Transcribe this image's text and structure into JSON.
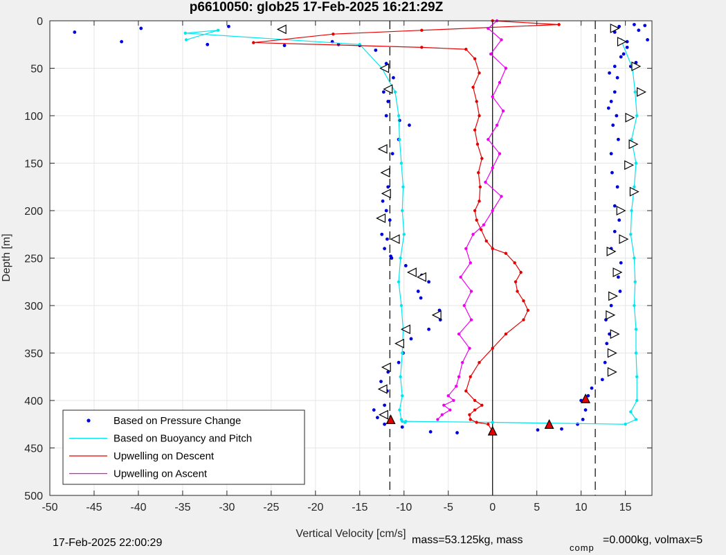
{
  "chart_data": {
    "type": "scatter",
    "title": "p6610050: glob25 17-Feb-2025 16:21:29Z",
    "xlabel": "Vertical Velocity [cm/s]",
    "ylabel": "Depth [m]",
    "xlim": [
      -50,
      18
    ],
    "ylim": [
      0,
      500
    ],
    "y_reversed": true,
    "grid": true,
    "legend_position": "bottom-left",
    "x_ticks": [
      -50,
      -45,
      -40,
      -35,
      -30,
      -25,
      -20,
      -15,
      -10,
      -5,
      0,
      5,
      10,
      15
    ],
    "y_ticks": [
      0,
      50,
      100,
      150,
      200,
      250,
      300,
      350,
      400,
      450,
      500
    ],
    "reference_lines": [
      {
        "x": -11.6,
        "style": "dashed",
        "color": "#000000"
      },
      {
        "x": 11.6,
        "style": "dashed",
        "color": "#000000"
      },
      {
        "x": 0,
        "style": "solid",
        "color": "#000000"
      }
    ],
    "series": [
      {
        "name": "Based on Pressure Change",
        "kind": "points",
        "color": "#0000dd",
        "x": [
          -47.2,
          -39.7,
          -41.9,
          -32.2,
          -29.8,
          -23.5,
          -17.4,
          -18.1,
          -15.0,
          -13.2,
          -12.0,
          -11.2,
          -12.3,
          -11.8,
          -12.0,
          -10.5,
          -9.4,
          -10.6,
          -11.3,
          -12.1,
          -11.8,
          -12.4,
          -12.0,
          -11.6,
          -12.5,
          -11.9,
          -12.2,
          -11.5,
          -11.4,
          -9.8,
          -8.0,
          -7.2,
          -8.4,
          -8.1,
          -6.0,
          -5.9,
          -7.2,
          -9.2,
          -10.1,
          -10.6,
          -11.8,
          -12.6,
          -11.9,
          -12.2,
          -13.4,
          -13.0,
          -12.2,
          -10.2,
          -7.0,
          -4.0,
          0.0,
          5.1,
          7.8,
          9.6,
          10.2,
          10.5,
          10.0,
          10.8,
          11.2,
          12.4,
          12.7,
          12.9,
          13.2,
          12.8,
          13.4,
          14.4,
          14.2,
          14.5,
          13.4,
          13.8,
          14.3,
          13.8,
          14.1,
          13.5,
          13.4,
          14.2,
          13.6,
          14.0,
          13.1,
          13.4,
          13.8,
          14.1,
          13.2,
          13.8,
          14.5,
          15.2,
          13.8,
          14.3,
          16.0,
          17.2,
          16.5,
          17.5,
          15.2,
          14.8,
          16.2,
          15.6
        ],
        "y": [
          12,
          8,
          22,
          25,
          6,
          26,
          25,
          22,
          26,
          31,
          45,
          60,
          75,
          85,
          100,
          105,
          110,
          125,
          140,
          160,
          175,
          190,
          200,
          210,
          225,
          230,
          240,
          248,
          250,
          258,
          268,
          275,
          285,
          292,
          305,
          315,
          325,
          335,
          350,
          360,
          370,
          380,
          390,
          405,
          410,
          418,
          425,
          428,
          433,
          434,
          433,
          431,
          430,
          425,
          420,
          410,
          400,
          395,
          387,
          378,
          360,
          340,
          330,
          315,
          300,
          285,
          270,
          255,
          240,
          222,
          210,
          195,
          175,
          160,
          140,
          125,
          110,
          100,
          92,
          85,
          75,
          60,
          55,
          48,
          38,
          22,
          12,
          6,
          4,
          5,
          10,
          20,
          28,
          35,
          44,
          48
        ]
      },
      {
        "name": "Based on Buoyancy and Pitch",
        "kind": "line-markers",
        "color": "#00e5ee",
        "x": [
          -34.6,
          -31.0,
          -34.7,
          -15.0,
          -12.5,
          -11.0,
          -10.6,
          -10.5,
          -10.3,
          -10.1,
          -10.2,
          -10.0,
          -10.4,
          -10.6,
          -10.3,
          -10.1,
          -10.2,
          -10.4,
          -10.2,
          -10.5,
          -10.3,
          -10.2,
          -9.9,
          -9.8,
          0.0,
          15.0,
          16.2,
          15.6,
          16.3,
          16.3,
          16.2,
          16.2,
          16.0,
          16.1,
          16.0,
          15.6,
          15.7,
          16.0,
          16.2,
          15.7,
          16.3,
          16.1,
          15.8,
          14.5
        ],
        "y": [
          20,
          10,
          13,
          25,
          50,
          75,
          100,
          125,
          150,
          175,
          200,
          225,
          250,
          275,
          300,
          325,
          350,
          375,
          395,
          410,
          420,
          422,
          423,
          422,
          423,
          425,
          420,
          412,
          400,
          375,
          350,
          325,
          300,
          275,
          250,
          225,
          200,
          175,
          150,
          125,
          100,
          75,
          50,
          20
        ]
      },
      {
        "name": "Upwelling on Descent",
        "kind": "line-markers",
        "color": "#e40000",
        "x": [
          0.0,
          7.5,
          -8.0,
          -18.0,
          -27.0,
          -8.0,
          -3.0,
          -2.0,
          -1.5,
          -2.2,
          -1.8,
          -1.5,
          -2.0,
          -1.7,
          -1.2,
          -1.6,
          -1.4,
          -1.5,
          -2.0,
          -1.8,
          -1.3,
          -0.7,
          0.0,
          1.5,
          2.5,
          3.2,
          2.6,
          2.8,
          3.5,
          4.0,
          3.5,
          1.5,
          0.0,
          -1.5,
          -2.5,
          -3.0,
          -2.0,
          -1.2,
          -2.0,
          -2.6,
          -2.5,
          -1.8,
          -0.5,
          0.0
        ],
        "y": [
          0,
          4,
          10,
          14,
          23,
          28,
          30,
          40,
          55,
          70,
          85,
          100,
          115,
          130,
          145,
          160,
          175,
          190,
          200,
          210,
          220,
          232,
          240,
          245,
          255,
          265,
          275,
          285,
          295,
          305,
          315,
          330,
          345,
          360,
          375,
          390,
          400,
          405,
          410,
          415,
          420,
          423,
          425,
          433
        ]
      },
      {
        "name": "Upwelling on Ascent",
        "kind": "line-markers",
        "color": "#ee00ee",
        "x": [
          0.5,
          -0.5,
          1.0,
          -0.2,
          1.5,
          0.8,
          0.0,
          1.2,
          0.5,
          -0.5,
          0.8,
          0.0,
          -0.8,
          1.0,
          0.0,
          -1.0,
          -2.2,
          -3.0,
          -2.5,
          -3.6,
          -2.4,
          -3.2,
          -2.4,
          -3.8,
          -2.6,
          -3.4,
          -3.8,
          -4.1,
          -5.0,
          -4.4,
          -5.5,
          -4.8,
          -5.7,
          -6.2
        ],
        "y": [
          0,
          8,
          20,
          35,
          50,
          65,
          80,
          95,
          110,
          125,
          140,
          155,
          170,
          185,
          200,
          215,
          225,
          240,
          255,
          270,
          285,
          300,
          315,
          330,
          345,
          360,
          375,
          385,
          395,
          400,
          405,
          410,
          415,
          420
        ]
      },
      {
        "name": "descent-triangles",
        "kind": "triangle-markers",
        "color": "#000000",
        "fill": "#ffffff",
        "x": [
          -23.8,
          -12.2,
          -11.8,
          -12.4,
          -12.1,
          -12.0,
          -12.6,
          -11.0,
          -8.0,
          -9.1,
          -6.3,
          -9.8,
          -10.5,
          -12.0,
          -12.4,
          -12.3
        ],
        "y": [
          9,
          50,
          72,
          135,
          160,
          182,
          208,
          230,
          270,
          265,
          310,
          325,
          340,
          365,
          388,
          415
        ]
      },
      {
        "name": "ascent-triangles",
        "kind": "triangle-markers",
        "color": "#000000",
        "fill": "#ffffff",
        "x": [
          13.8,
          14.6,
          16.2,
          16.8,
          15.5,
          15.9,
          15.4,
          16.0,
          14.5,
          14.8,
          13.4,
          14.1,
          13.6,
          13.3,
          13.8,
          13.5,
          13.5
        ],
        "y": [
          8,
          22,
          48,
          75,
          102,
          130,
          152,
          180,
          200,
          230,
          243,
          265,
          290,
          310,
          330,
          350,
          370
        ]
      },
      {
        "name": "filled-triangles",
        "kind": "triangle-markers",
        "color": "#000000",
        "fill": "#e40000",
        "x": [
          -11.5,
          0.0,
          6.4,
          10.5
        ],
        "y": [
          420,
          432,
          425,
          398
        ]
      }
    ],
    "legend": [
      {
        "label": "Based on Pressure Change",
        "color": "#0000dd",
        "kind": "dot"
      },
      {
        "label": "Based on Buoyancy and Pitch",
        "color": "#00e5ee",
        "kind": "line"
      },
      {
        "label": "Upwelling on Descent",
        "color": "#e40000",
        "kind": "line"
      },
      {
        "label": "Upwelling on Ascent",
        "color": "#ee00ee",
        "kind": "line"
      }
    ]
  },
  "footer": {
    "timestamp": "17-Feb-2025 22:00:29",
    "mass_text": "mass=53.125kg, mass",
    "comp_sub": "comp",
    "mass_comp_text": "=0.000kg, volmax=5"
  }
}
